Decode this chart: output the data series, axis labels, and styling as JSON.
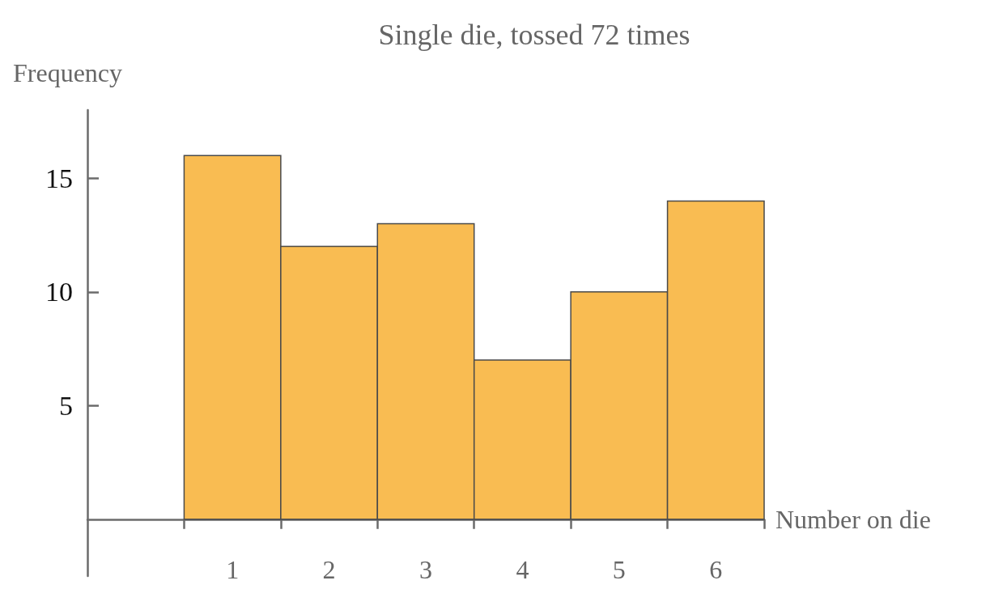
{
  "chart_data": {
    "type": "histogram",
    "title": "Single die, tossed 72 times",
    "xlabel": "Number on die",
    "ylabel": "Frequency",
    "bins": [
      0.5,
      1.5,
      2.5,
      3.5,
      4.5,
      5.5,
      6.5
    ],
    "values": [
      16,
      12,
      13,
      7,
      10,
      14
    ],
    "color": "#f9bc52",
    "xlim": [
      -0.5,
      6.5
    ],
    "xticks": [
      {
        "value": 0.5,
        "label": null
      },
      1,
      {
        "value": 1.5,
        "label": null
      },
      2,
      {
        "value": 2.5,
        "label": null
      },
      3,
      {
        "value": 3.5,
        "label": null
      },
      4,
      {
        "value": 4.5,
        "label": null
      },
      5,
      {
        "value": 5.5,
        "label": null
      },
      6,
      {
        "value": 6.5,
        "label": null
      }
    ],
    "ylim": [
      -2.5,
      18
    ],
    "yticks": [
      5,
      10,
      15
    ],
    "grid": false
  }
}
